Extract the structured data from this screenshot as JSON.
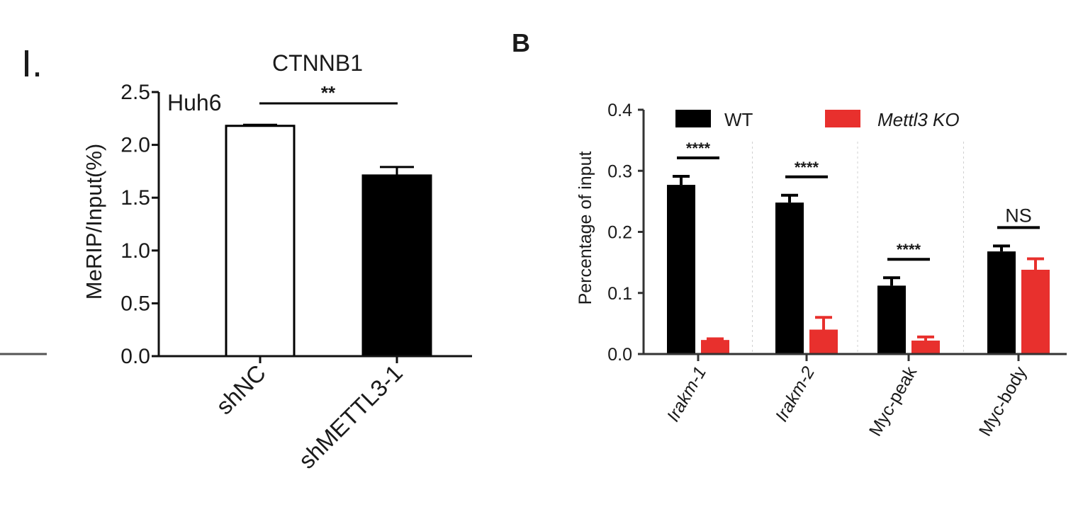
{
  "panels": {
    "left_label": "I.",
    "right_label": "B"
  },
  "colors": {
    "black": "#000000",
    "red": "#e8302d",
    "white": "#ffffff",
    "axis": "#111111"
  },
  "chart_data": [
    {
      "type": "bar",
      "title": "CTNNB1",
      "cell_line": "Huh6",
      "ylabel": "MeRIP/Input(%)",
      "xlabel": "",
      "ylim": [
        0,
        2.5
      ],
      "yticks": [
        "0.0",
        "0.5",
        "1.0",
        "1.5",
        "2.0",
        "2.5"
      ],
      "categories": [
        "shNC",
        "shMETTL3-1"
      ],
      "values": [
        2.18,
        1.71
      ],
      "errors": [
        0.01,
        0.08
      ],
      "fills": [
        "#ffffff",
        "#000000"
      ],
      "significance": [
        {
          "from": 0,
          "to": 1,
          "label": "**"
        }
      ]
    },
    {
      "type": "bar",
      "title": "",
      "ylabel": "Percentage of input",
      "xlabel": "",
      "ylim": [
        0,
        0.4
      ],
      "yticks": [
        "0.0",
        "0.1",
        "0.2",
        "0.3",
        "0.4"
      ],
      "categories": [
        "Irakm-1",
        "Irakm-2",
        "Myc-peak",
        "Myc-body"
      ],
      "legend_position": "top",
      "series": [
        {
          "name": "WT",
          "color": "#000000",
          "values": [
            0.277,
            0.248,
            0.112,
            0.168
          ],
          "errors": [
            0.014,
            0.012,
            0.013,
            0.009
          ]
        },
        {
          "name": "Mettl3 KO",
          "color": "#e8302d",
          "values": [
            0.023,
            0.04,
            0.022,
            0.138
          ],
          "errors": [
            0.002,
            0.02,
            0.006,
            0.018
          ]
        }
      ],
      "significance": [
        "****",
        "****",
        "****",
        "NS"
      ]
    }
  ]
}
